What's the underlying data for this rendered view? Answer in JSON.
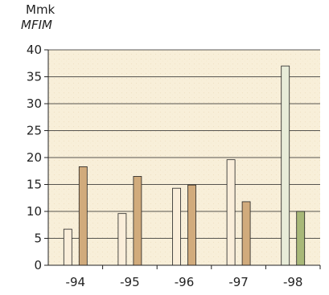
{
  "chart_data": {
    "type": "bar",
    "unit_label": "Mmk",
    "unit_label_alt": "MFIM",
    "categories": [
      "-94",
      "-95",
      "-96",
      "-97",
      "-98"
    ],
    "series": [
      {
        "values": [
          6.7,
          9.6,
          14.3,
          19.6,
          37.0
        ]
      },
      {
        "values": [
          18.3,
          16.5,
          14.9,
          11.8,
          10.0
        ]
      }
    ],
    "highlight_colors": {
      "s1": "#e8ecd8",
      "s2": "#a8b878"
    },
    "ylim": [
      0,
      40
    ],
    "yticks": [
      0,
      5,
      10,
      15,
      20,
      25,
      30,
      35,
      40
    ],
    "grid": true,
    "colors": {
      "plot_background": "#f8efd9",
      "series1": "#faeeda",
      "series2": "#d1ab7c",
      "bar_edge": "#222222",
      "axis": "#222222"
    }
  }
}
